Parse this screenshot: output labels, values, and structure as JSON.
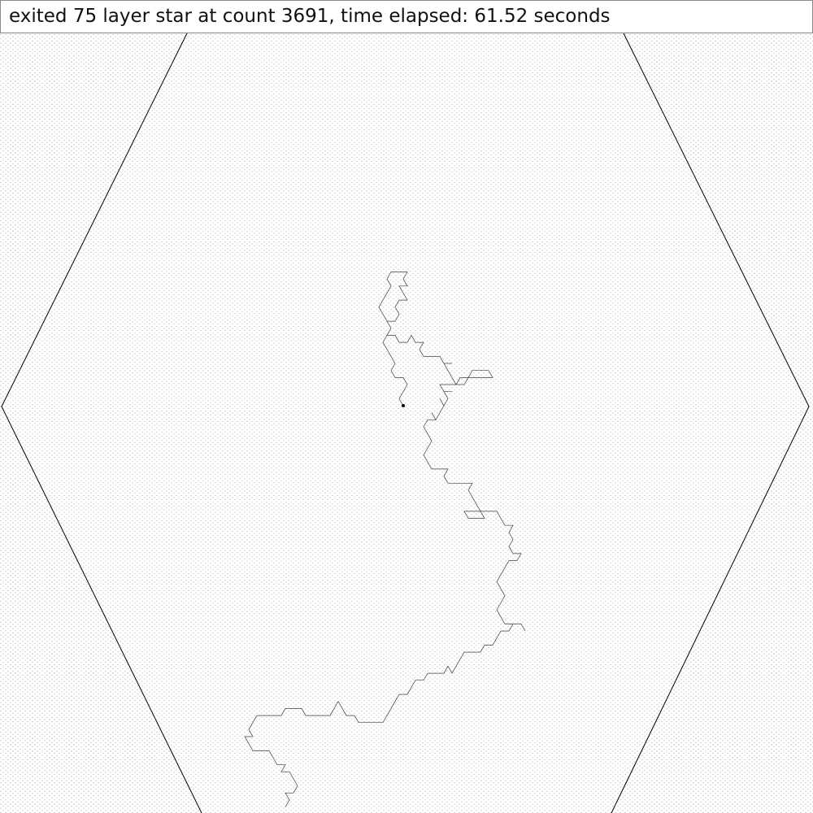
{
  "status": {
    "message": "exited 75 layer star at count 3691, time elapsed: 61.52 seconds"
  },
  "simulation": {
    "layers": 75,
    "count": 3691,
    "time_elapsed_seconds": 61.52
  },
  "colors": {
    "background": "#ffffff",
    "lattice_dot": "#8a8a8a",
    "boundary_line": "#000000",
    "walk_line": "#000000",
    "status_border": "#888888",
    "status_text": "#111111"
  },
  "icons": {
    "origin_marker": "dot-icon"
  }
}
